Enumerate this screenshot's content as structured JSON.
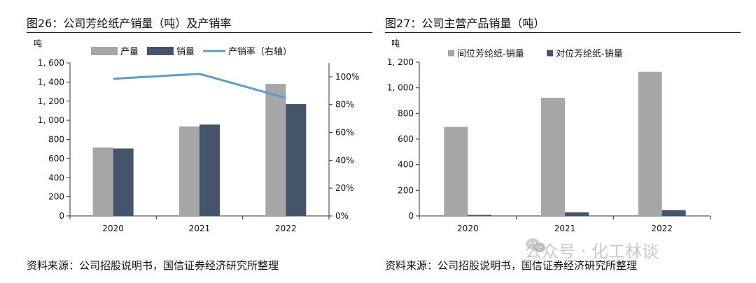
{
  "figures": [
    {
      "title": "图26：公司芳纶纸产销量（吨）及产销率",
      "source": "资料来源：公司招股说明书，国信证券经济研究所整理"
    },
    {
      "title": "图27：公司主营产品销量（吨）",
      "source": "资料来源：公司招股说明书，国信证券经济研究所整理"
    }
  ],
  "watermark": "公众号 · 化工林谈",
  "chart_data": [
    {
      "type": "bar",
      "categories": [
        "2020",
        "2021",
        "2022"
      ],
      "series": [
        {
          "name": "产量",
          "values": [
            715,
            935,
            1380
          ],
          "color": "#a6a6a6"
        },
        {
          "name": "销量",
          "values": [
            705,
            955,
            1170
          ],
          "color": "#44546a"
        },
        {
          "name": "产销率（右轴）",
          "type": "line",
          "axis": "right",
          "values": [
            98.6,
            102.1,
            84.8
          ],
          "color": "#5b9bd5"
        }
      ],
      "ylabel": "吨",
      "ylim": [
        0,
        1600
      ],
      "yticks": [
        0,
        200,
        400,
        600,
        800,
        1000,
        1200,
        1400,
        1600
      ],
      "ytick_labels": [
        "0",
        "200",
        "400",
        "600",
        "800",
        "1, 000",
        "1, 200",
        "1, 400",
        "1, 600"
      ],
      "y2lim": [
        0,
        110
      ],
      "y2ticks": [
        0,
        20,
        40,
        60,
        80,
        100
      ],
      "y2tick_labels": [
        "0%",
        "20%",
        "40%",
        "60%",
        "80%",
        "100%"
      ],
      "legend": "top",
      "grid": false
    },
    {
      "type": "bar",
      "categories": [
        "2020",
        "2021",
        "2022"
      ],
      "series": [
        {
          "name": "间位芳纶纸-销量",
          "values": [
            695,
            922,
            1125
          ],
          "color": "#a6a6a6"
        },
        {
          "name": "对位芳纶纸-销量",
          "values": [
            8,
            28,
            45
          ],
          "color": "#44546a"
        }
      ],
      "ylabel": "吨",
      "ylim": [
        0,
        1200
      ],
      "yticks": [
        0,
        200,
        400,
        600,
        800,
        1000,
        1200
      ],
      "ytick_labels": [
        "0",
        "200",
        "400",
        "600",
        "800",
        "1, 000",
        "1, 200"
      ],
      "legend": "top",
      "grid": false
    }
  ]
}
